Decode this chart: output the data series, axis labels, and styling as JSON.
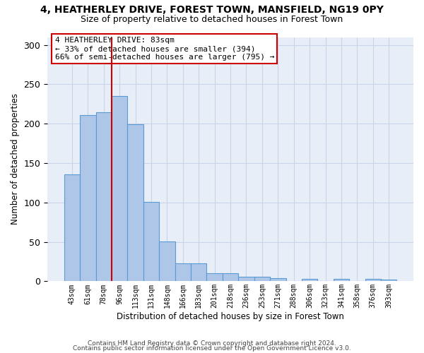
{
  "title1": "4, HEATHERLEY DRIVE, FOREST TOWN, MANSFIELD, NG19 0PY",
  "title2": "Size of property relative to detached houses in Forest Town",
  "xlabel": "Distribution of detached houses by size in Forest Town",
  "ylabel": "Number of detached properties",
  "footer1": "Contains HM Land Registry data © Crown copyright and database right 2024.",
  "footer2": "Contains public sector information licensed under the Open Government Licence v3.0.",
  "bar_color": "#aec6e8",
  "bar_edge_color": "#5b9bd5",
  "vline_color": "#cc0000",
  "grid_color": "#c8d4e8",
  "bg_color": "#e8eef8",
  "annotation_line1": "4 HEATHERLEY DRIVE: 83sqm",
  "annotation_line2": "← 33% of detached houses are smaller (394)",
  "annotation_line3": "66% of semi-detached houses are larger (795) →",
  "categories": [
    "43sqm",
    "61sqm",
    "78sqm",
    "96sqm",
    "113sqm",
    "131sqm",
    "148sqm",
    "166sqm",
    "183sqm",
    "201sqm",
    "218sqm",
    "236sqm",
    "253sqm",
    "271sqm",
    "288sqm",
    "306sqm",
    "323sqm",
    "341sqm",
    "358sqm",
    "376sqm",
    "393sqm"
  ],
  "values": [
    136,
    211,
    215,
    235,
    199,
    101,
    51,
    23,
    23,
    10,
    10,
    6,
    6,
    4,
    0,
    3,
    0,
    3,
    0,
    3,
    2
  ],
  "ylim": [
    0,
    310
  ],
  "yticks": [
    0,
    50,
    100,
    150,
    200,
    250,
    300
  ],
  "vline_pos": 2.5
}
